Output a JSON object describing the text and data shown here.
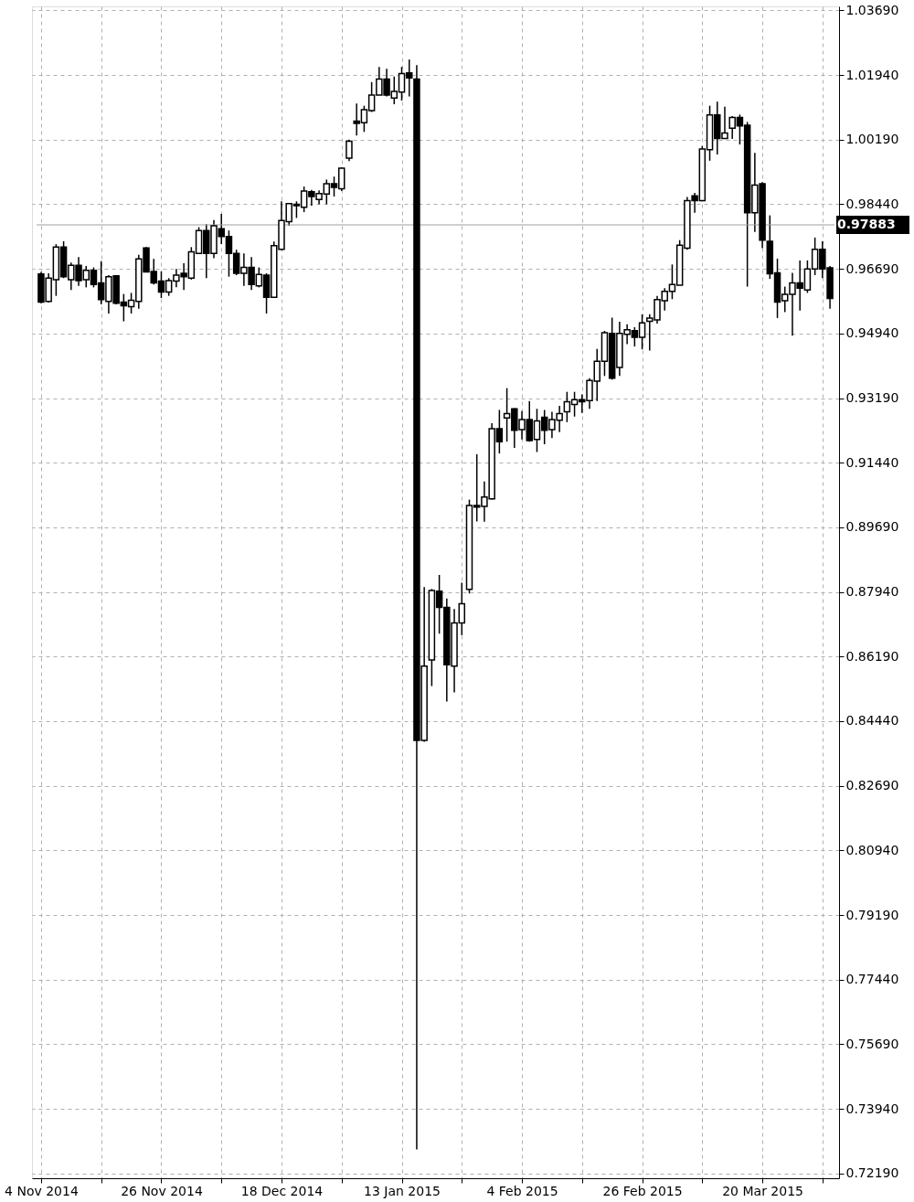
{
  "chart_data": {
    "type": "candlestick",
    "categories": [
      "4 Nov 2014",
      null,
      null,
      null,
      null,
      null,
      null,
      null,
      null,
      null,
      null,
      null,
      null,
      null,
      null,
      null,
      "26 Nov 2014",
      null,
      null,
      null,
      null,
      null,
      null,
      null,
      null,
      null,
      null,
      null,
      null,
      null,
      null,
      null,
      "18 Dec 2014",
      null,
      null,
      null,
      null,
      null,
      null,
      null,
      null,
      null,
      null,
      null,
      null,
      null,
      null,
      null,
      "13 Jan 2015",
      null,
      null,
      null,
      null,
      null,
      null,
      null,
      null,
      null,
      null,
      null,
      null,
      null,
      null,
      null,
      "4 Feb 2015",
      null,
      null,
      null,
      null,
      null,
      null,
      null,
      null,
      null,
      null,
      null,
      null,
      null,
      null,
      null,
      "26 Feb 2015",
      null,
      null,
      null,
      null,
      null,
      null,
      null,
      null,
      null,
      null,
      null,
      null,
      null,
      null,
      null,
      "20 Mar 2015",
      null,
      null,
      null,
      null,
      null,
      null,
      null,
      null,
      null
    ],
    "ohlc": [
      [
        0.9655,
        0.9661,
        0.9576,
        0.9579
      ],
      [
        0.9581,
        0.9657,
        0.9578,
        0.9644
      ],
      [
        0.964,
        0.9736,
        0.9596,
        0.9728
      ],
      [
        0.9728,
        0.9744,
        0.9644,
        0.9648
      ],
      [
        0.964,
        0.9686,
        0.9612,
        0.9679
      ],
      [
        0.9679,
        0.9701,
        0.9623,
        0.9637
      ],
      [
        0.964,
        0.9677,
        0.9619,
        0.9665
      ],
      [
        0.9665,
        0.9673,
        0.9619,
        0.9627
      ],
      [
        0.9631,
        0.969,
        0.9573,
        0.9586
      ],
      [
        0.9581,
        0.9652,
        0.9548,
        0.9648
      ],
      [
        0.965,
        0.9652,
        0.9573,
        0.9576
      ],
      [
        0.9579,
        0.9601,
        0.9527,
        0.9569
      ],
      [
        0.9567,
        0.9604,
        0.9548,
        0.9584
      ],
      [
        0.9581,
        0.9707,
        0.9561,
        0.9696
      ],
      [
        0.9726,
        0.9728,
        0.9661,
        0.9661
      ],
      [
        0.9662,
        0.9696,
        0.9627,
        0.9631
      ],
      [
        0.9636,
        0.9662,
        0.959,
        0.9606
      ],
      [
        0.9606,
        0.9644,
        0.9596,
        0.9637
      ],
      [
        0.9636,
        0.9669,
        0.9619,
        0.9652
      ],
      [
        0.9657,
        0.9684,
        0.9612,
        0.9648
      ],
      [
        0.9644,
        0.9728,
        0.964,
        0.9715
      ],
      [
        0.9711,
        0.9782,
        0.9711,
        0.9773
      ],
      [
        0.9773,
        0.979,
        0.9644,
        0.9711
      ],
      [
        0.9711,
        0.9801,
        0.9698,
        0.9786
      ],
      [
        0.9778,
        0.9818,
        0.9736,
        0.9757
      ],
      [
        0.9757,
        0.9773,
        0.9648,
        0.9711
      ],
      [
        0.9711,
        0.9721,
        0.9652,
        0.9657
      ],
      [
        0.9657,
        0.9711,
        0.9623,
        0.9673
      ],
      [
        0.9673,
        0.9701,
        0.9612,
        0.9627
      ],
      [
        0.9623,
        0.9673,
        0.9619,
        0.9654
      ],
      [
        0.9652,
        0.9657,
        0.9548,
        0.9592
      ],
      [
        0.9592,
        0.9743,
        0.9592,
        0.9732
      ],
      [
        0.9722,
        0.9852,
        0.972,
        0.98
      ],
      [
        0.9797,
        0.9848,
        0.9786,
        0.9846
      ],
      [
        0.984,
        0.9852,
        0.9807,
        0.9844
      ],
      [
        0.9836,
        0.9892,
        0.9823,
        0.988
      ],
      [
        0.9878,
        0.9883,
        0.984,
        0.9865
      ],
      [
        0.9857,
        0.9882,
        0.9844,
        0.9873
      ],
      [
        0.9872,
        0.9911,
        0.9844,
        0.99
      ],
      [
        0.99,
        0.9919,
        0.9865,
        0.989
      ],
      [
        0.9886,
        0.9944,
        0.988,
        0.9942
      ],
      [
        0.9969,
        1.0019,
        0.9961,
        1.0015
      ],
      [
        1.0069,
        1.0117,
        1.003,
        1.0063
      ],
      [
        1.0065,
        1.0111,
        1.004,
        1.01
      ],
      [
        1.0098,
        1.0175,
        1.0094,
        1.014
      ],
      [
        1.014,
        1.0216,
        1.014,
        1.0183
      ],
      [
        1.0183,
        1.0211,
        1.0136,
        1.014
      ],
      [
        1.0132,
        1.019,
        1.0115,
        1.015
      ],
      [
        1.0148,
        1.0216,
        1.0125,
        1.0198
      ],
      [
        1.02,
        1.0236,
        1.0136,
        1.0186
      ],
      [
        1.0183,
        1.0221,
        0.7284,
        0.8392
      ],
      [
        0.8392,
        0.8807,
        0.8388,
        0.8593
      ],
      [
        0.861,
        0.8802,
        0.8539,
        0.8798
      ],
      [
        0.8796,
        0.884,
        0.8681,
        0.8752
      ],
      [
        0.8752,
        0.8776,
        0.8497,
        0.8597
      ],
      [
        0.8593,
        0.8748,
        0.8522,
        0.871
      ],
      [
        0.871,
        0.8819,
        0.8677,
        0.8762
      ],
      [
        0.8801,
        0.9044,
        0.879,
        0.9028
      ],
      [
        0.9028,
        0.9167,
        0.8985,
        0.9024
      ],
      [
        0.9026,
        0.9093,
        0.8984,
        0.9051
      ],
      [
        0.9046,
        0.9251,
        0.9044,
        0.9236
      ],
      [
        0.9236,
        0.9287,
        0.9169,
        0.9201
      ],
      [
        0.9265,
        0.9346,
        0.9201,
        0.9277
      ],
      [
        0.929,
        0.9292,
        0.9184,
        0.9232
      ],
      [
        0.9234,
        0.9284,
        0.9207,
        0.9261
      ],
      [
        0.9261,
        0.9311,
        0.9201,
        0.9204
      ],
      [
        0.9207,
        0.929,
        0.9173,
        0.9257
      ],
      [
        0.9267,
        0.9287,
        0.9194,
        0.9232
      ],
      [
        0.9234,
        0.9282,
        0.9211,
        0.9261
      ],
      [
        0.9259,
        0.9298,
        0.9227,
        0.9277
      ],
      [
        0.9282,
        0.9336,
        0.9254,
        0.9309
      ],
      [
        0.9302,
        0.9336,
        0.9269,
        0.9315
      ],
      [
        0.9315,
        0.9329,
        0.9279,
        0.9309
      ],
      [
        0.9312,
        0.9373,
        0.929,
        0.9367
      ],
      [
        0.9365,
        0.9452,
        0.9311,
        0.9419
      ],
      [
        0.9419,
        0.9501,
        0.9379,
        0.9496
      ],
      [
        0.9494,
        0.9537,
        0.9369,
        0.9373
      ],
      [
        0.9402,
        0.9526,
        0.9379,
        0.9494
      ],
      [
        0.9492,
        0.9519,
        0.9465,
        0.9504
      ],
      [
        0.9502,
        0.9511,
        0.9459,
        0.9484
      ],
      [
        0.9484,
        0.9546,
        0.9451,
        0.9523
      ],
      [
        0.9527,
        0.9546,
        0.9448,
        0.9536
      ],
      [
        0.9531,
        0.9596,
        0.9521,
        0.9586
      ],
      [
        0.9583,
        0.9617,
        0.9556,
        0.9608
      ],
      [
        0.9608,
        0.9681,
        0.9587,
        0.9627
      ],
      [
        0.9625,
        0.9747,
        0.9625,
        0.9733
      ],
      [
        0.9725,
        0.9864,
        0.9721,
        0.9854
      ],
      [
        0.9867,
        0.9875,
        0.9821,
        0.9854
      ],
      [
        0.9854,
        1.0002,
        0.9852,
        0.9994
      ],
      [
        0.9992,
        1.0111,
        0.9962,
        1.0086
      ],
      [
        1.0086,
        1.0122,
        0.9979,
        1.0022
      ],
      [
        1.0022,
        1.0108,
        1.0021,
        1.0037
      ],
      [
        1.005,
        1.0083,
        1.0021,
        1.0079
      ],
      [
        1.0079,
        1.0087,
        1.0006,
        1.0056
      ],
      [
        1.0058,
        1.0067,
        0.9621,
        0.9821
      ],
      [
        0.9821,
        0.9983,
        0.9769,
        0.9896
      ],
      [
        0.99,
        0.9904,
        0.9725,
        0.9747
      ],
      [
        0.9744,
        0.9814,
        0.9642,
        0.9656
      ],
      [
        0.9658,
        0.9697,
        0.9536,
        0.9579
      ],
      [
        0.9583,
        0.9621,
        0.9552,
        0.96
      ],
      [
        0.96,
        0.9658,
        0.9488,
        0.9631
      ],
      [
        0.9631,
        0.9692,
        0.9556,
        0.9617
      ],
      [
        0.9612,
        0.9692,
        0.9604,
        0.9669
      ],
      [
        0.9669,
        0.9754,
        0.9652,
        0.9722
      ],
      [
        0.9722,
        0.9744,
        0.9644,
        0.9669
      ],
      [
        0.9672,
        0.9677,
        0.9561,
        0.9589
      ]
    ],
    "color": "#000000",
    "ylim": [
      0.7206,
      1.038
    ],
    "yticks": [
      {
        "value": 0.7219,
        "label": "0.72190"
      },
      {
        "value": 0.7394,
        "label": "0.73940"
      },
      {
        "value": 0.7569,
        "label": "0.75690"
      },
      {
        "value": 0.7744,
        "label": "0.77440"
      },
      {
        "value": 0.7919,
        "label": "0.79190"
      },
      {
        "value": 0.8094,
        "label": "0.80940"
      },
      {
        "value": 0.8269,
        "label": "0.82690"
      },
      {
        "value": 0.8444,
        "label": "0.84440"
      },
      {
        "value": 0.8619,
        "label": "0.86190"
      },
      {
        "value": 0.8794,
        "label": "0.87940"
      },
      {
        "value": 0.8969,
        "label": "0.89690"
      },
      {
        "value": 0.9144,
        "label": "0.91440"
      },
      {
        "value": 0.9319,
        "label": "0.93190"
      },
      {
        "value": 0.9494,
        "label": "0.94940"
      },
      {
        "value": 0.9669,
        "label": "0.96690"
      },
      {
        "value": 0.9844,
        "label": "0.98440"
      },
      {
        "value": 1.0019,
        "label": "1.00190"
      },
      {
        "value": 1.0194,
        "label": "1.01940"
      },
      {
        "value": 1.0369,
        "label": "1.03690"
      }
    ],
    "ref_lines": [
      {
        "axis": "y",
        "value": 0.97883,
        "label": "0.97883",
        "color": "#a0a0a0"
      }
    ],
    "grid": true
  }
}
